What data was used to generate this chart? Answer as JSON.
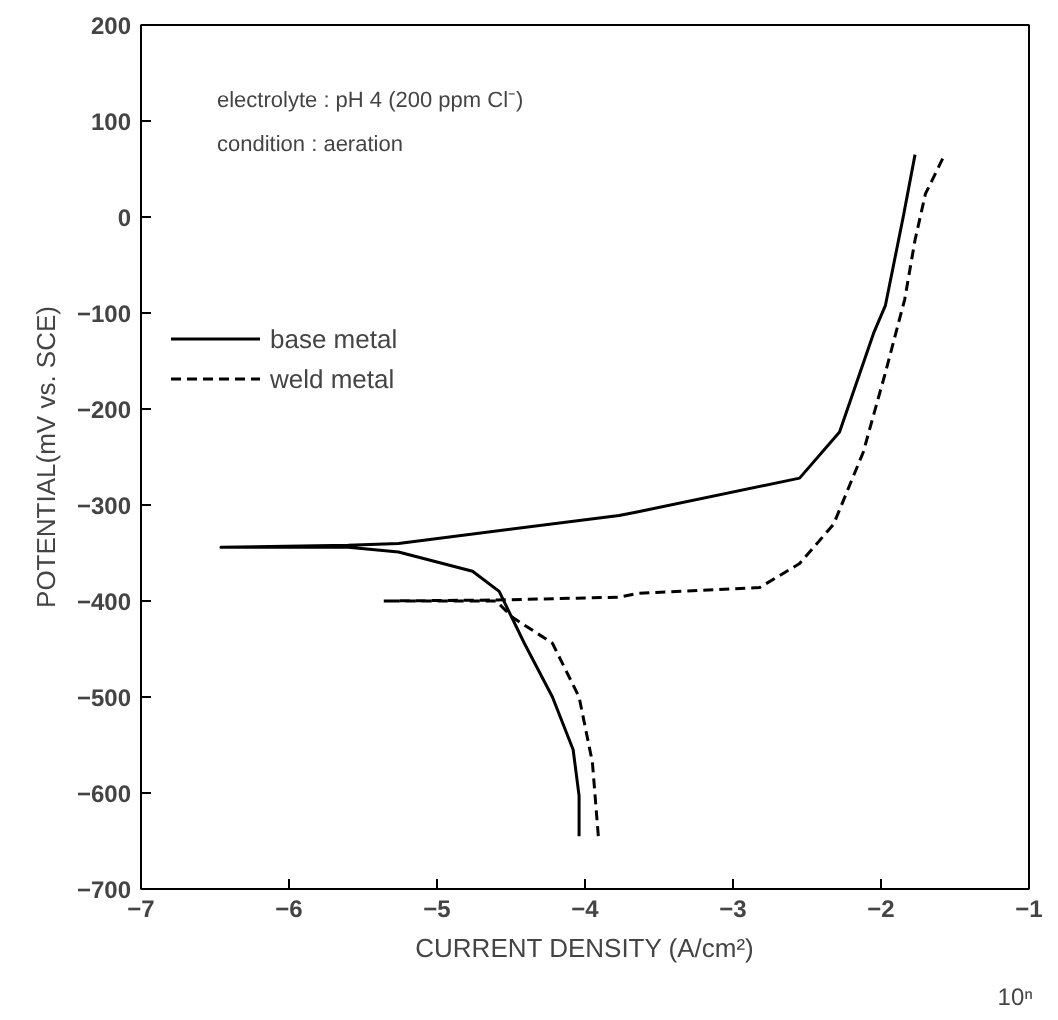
{
  "chart_data": {
    "type": "line",
    "xlabel": "CURRENT DENSITY (A/cm²)",
    "ylabel": "POTENTIAL(mV vs. SCE)",
    "annotations": [
      "electrolyte : pH 4 (200 ppm Cl⁻)",
      "condition : aeration",
      "10ⁿ"
    ],
    "xlim": [
      -7,
      -1
    ],
    "ylim": [
      -700,
      200
    ],
    "xticks": [
      -7,
      -6,
      -5,
      -4,
      -3,
      -2,
      -1
    ],
    "yticks": [
      -700,
      -600,
      -500,
      -400,
      -300,
      -200,
      -100,
      0,
      100,
      200
    ],
    "grid": false,
    "legend": "top left",
    "marker": "none",
    "series": [
      {
        "name": "base metal",
        "color": "#000000",
        "line_style": "solid",
        "x": [
          -4.04,
          -4.04,
          -4.08,
          -4.22,
          -4.41,
          -4.58,
          -4.76,
          -5.26,
          -5.6,
          -6.46,
          -5.6,
          -5.26,
          -3.77,
          -3.64,
          -2.55,
          -2.28,
          -2.05,
          -1.97,
          -1.85,
          -1.77
        ],
        "values": [
          -645,
          -603,
          -555,
          -500,
          -444,
          -390,
          -369,
          -349,
          -344,
          -344,
          -342,
          -340,
          -311,
          -307,
          -272,
          -224,
          -121,
          -92,
          0,
          65
        ]
      },
      {
        "name": "weld metal",
        "color": "#000000",
        "line_style": "dashed",
        "x": [
          -3.91,
          -3.95,
          -4.04,
          -4.22,
          -4.49,
          -4.6,
          -5.36,
          -4.6,
          -3.77,
          -3.64,
          -2.82,
          -2.55,
          -2.32,
          -2.12,
          -1.97,
          -1.84,
          -1.77,
          -1.7,
          -1.57
        ],
        "values": [
          -645,
          -568,
          -500,
          -444,
          -417,
          -400,
          -400,
          -399,
          -396,
          -392,
          -386,
          -361,
          -320,
          -245,
          -162,
          -86,
          -24,
          24,
          65
        ]
      }
    ]
  }
}
